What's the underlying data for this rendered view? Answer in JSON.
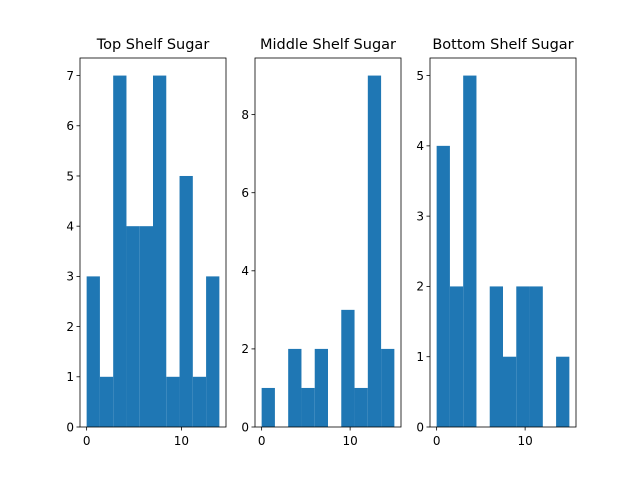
{
  "chart_data": [
    {
      "type": "bar",
      "title": "Top Shelf Sugar",
      "xlabel": "",
      "ylabel": "",
      "xlim": [
        -0.7,
        14.7
      ],
      "ylim": [
        0,
        7.35
      ],
      "xticks": [
        0,
        10
      ],
      "yticks": [
        0,
        1,
        2,
        3,
        4,
        5,
        6,
        7
      ],
      "bins": [
        [
          0,
          1.4,
          3
        ],
        [
          1.4,
          2.8,
          1
        ],
        [
          2.8,
          4.2,
          7
        ],
        [
          4.2,
          5.6,
          4
        ],
        [
          5.6,
          7.0,
          4
        ],
        [
          7.0,
          8.4,
          7
        ],
        [
          8.4,
          9.8,
          1
        ],
        [
          9.8,
          11.2,
          5
        ],
        [
          11.2,
          12.6,
          1
        ],
        [
          12.6,
          14.0,
          3
        ]
      ],
      "color": "#1f77b4",
      "grid": false
    },
    {
      "type": "bar",
      "title": "Middle Shelf Sugar",
      "xlabel": "",
      "ylabel": "",
      "xlim": [
        -0.75,
        15.75
      ],
      "ylim": [
        0,
        9.45
      ],
      "xticks": [
        0,
        10
      ],
      "yticks": [
        0,
        2,
        4,
        6,
        8
      ],
      "bins": [
        [
          0,
          1.5,
          1
        ],
        [
          1.5,
          3.0,
          0
        ],
        [
          3.0,
          4.5,
          2
        ],
        [
          4.5,
          6.0,
          1
        ],
        [
          6.0,
          7.5,
          2
        ],
        [
          7.5,
          9.0,
          0
        ],
        [
          9.0,
          10.5,
          3
        ],
        [
          10.5,
          12.0,
          1
        ],
        [
          12.0,
          13.5,
          9
        ],
        [
          13.5,
          15.0,
          2
        ]
      ],
      "color": "#1f77b4",
      "grid": false
    },
    {
      "type": "bar",
      "title": "Bottom Shelf Sugar",
      "xlabel": "",
      "ylabel": "",
      "xlim": [
        -0.75,
        15.75
      ],
      "ylim": [
        0,
        5.25
      ],
      "xticks": [
        0,
        10
      ],
      "yticks": [
        0,
        1,
        2,
        3,
        4,
        5
      ],
      "bins": [
        [
          0,
          1.5,
          4
        ],
        [
          1.5,
          3.0,
          2
        ],
        [
          3.0,
          4.5,
          5
        ],
        [
          4.5,
          6.0,
          0
        ],
        [
          6.0,
          7.5,
          2
        ],
        [
          7.5,
          9.0,
          1
        ],
        [
          9.0,
          10.5,
          2
        ],
        [
          10.5,
          12.0,
          2
        ],
        [
          12.0,
          13.5,
          0
        ],
        [
          13.5,
          15.0,
          1
        ]
      ],
      "color": "#1f77b4",
      "grid": false
    }
  ]
}
